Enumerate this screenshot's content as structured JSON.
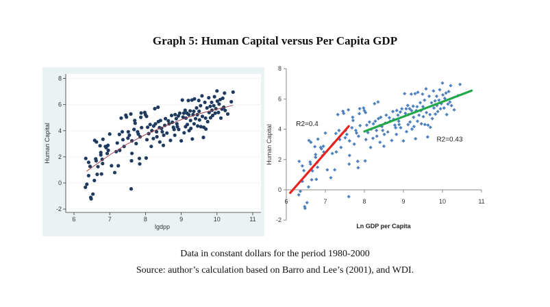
{
  "page": {
    "title": "Graph 5: Human Capital versus Per Capita GDP",
    "caption_line1": "Data in constant dollars for the period 1980-2000",
    "caption_line2": "Source: author’s calculation based on Barro and Lee’s (2001), and WDI."
  },
  "chart_data": [
    {
      "type": "scatter",
      "panel": "left",
      "title": "",
      "xlabel": "lgdpp",
      "ylabel": "Human Capital",
      "xlim": [
        6,
        11
      ],
      "ylim": [
        -2,
        8
      ],
      "xticks": [
        "6",
        "7",
        "8",
        "9",
        "10",
        "11"
      ],
      "yticks": [
        "-2",
        "0",
        "2",
        "4",
        "6",
        "8"
      ],
      "grid": true,
      "background": "#eaf2f4",
      "marker_color": "#1f3a5f",
      "fit": {
        "type": "quadratic",
        "color": "#a0404a",
        "x_range": [
          6.35,
          10.45
        ],
        "points": [
          [
            6.35,
            0.9
          ],
          [
            7.0,
            2.15
          ],
          [
            7.5,
            3.0
          ],
          [
            8.0,
            3.7
          ],
          [
            8.5,
            4.3
          ],
          [
            9.0,
            4.85
          ],
          [
            9.5,
            5.3
          ],
          [
            10.0,
            5.65
          ],
          [
            10.45,
            5.95
          ]
        ]
      },
      "series_ref": "points"
    },
    {
      "type": "scatter",
      "panel": "right",
      "title": "",
      "xlabel": "Ln GDP per Capita",
      "ylabel": "Human Capital",
      "xlim": [
        6,
        11
      ],
      "ylim": [
        -2,
        8
      ],
      "xticks": [
        "6",
        "7",
        "8",
        "9",
        "10",
        "11"
      ],
      "yticks": [
        "-2",
        "0",
        "2",
        "4",
        "6",
        "8"
      ],
      "grid": false,
      "marker_color": "#4f81bd",
      "trendlines": [
        {
          "name": "low-income fit",
          "color": "#e8231e",
          "x": [
            6.1,
            7.6
          ],
          "y": [
            -0.2,
            4.2
          ],
          "label": "R2=0.4",
          "label_at": [
            6.25,
            4.2
          ]
        },
        {
          "name": "high-income fit",
          "color": "#21a847",
          "x": [
            8.0,
            10.75
          ],
          "y": [
            3.85,
            6.55
          ],
          "label": "R2=0.43",
          "label_at": [
            9.85,
            3.2
          ]
        }
      ],
      "series_ref": "points"
    }
  ],
  "points": [
    [
      6.33,
      1.88
    ],
    [
      6.32,
      -0.33
    ],
    [
      6.36,
      -0.1
    ],
    [
      6.41,
      1.58
    ],
    [
      6.45,
      1.27
    ],
    [
      6.41,
      0.56
    ],
    [
      6.47,
      -1.11
    ],
    [
      6.48,
      -1.22
    ],
    [
      6.53,
      -0.85
    ],
    [
      6.57,
      0.19
    ],
    [
      6.58,
      3.26
    ],
    [
      6.63,
      3.14
    ],
    [
      6.61,
      1.84
    ],
    [
      6.62,
      1.7
    ],
    [
      6.65,
      0.66
    ],
    [
      6.67,
      1.25
    ],
    [
      6.73,
      2.85
    ],
    [
      6.75,
      2.33
    ],
    [
      6.75,
      2.15
    ],
    [
      6.77,
      0.69
    ],
    [
      6.8,
      1.49
    ],
    [
      6.79,
      1.81
    ],
    [
      6.81,
      3.35
    ],
    [
      6.88,
      2.8
    ],
    [
      6.9,
      2.71
    ],
    [
      6.93,
      2.26
    ],
    [
      6.95,
      2.88
    ],
    [
      6.96,
      2.5
    ],
    [
      7.0,
      3.75
    ],
    [
      7.05,
      1.32
    ],
    [
      7.14,
      0.8
    ],
    [
      7.18,
      2.4
    ],
    [
      7.21,
      3.06
    ],
    [
      7.24,
      1.32
    ],
    [
      7.27,
      3.72
    ],
    [
      7.28,
      2.5
    ],
    [
      7.32,
      4.97
    ],
    [
      7.35,
      3.92
    ],
    [
      7.37,
      3.32
    ],
    [
      7.4,
      2.8
    ],
    [
      7.45,
      5.19
    ],
    [
      7.47,
      5.05
    ],
    [
      7.51,
      3.44
    ],
    [
      7.52,
      3.92
    ],
    [
      7.55,
      3.66
    ],
    [
      7.59,
      5.28
    ],
    [
      7.6,
      -0.45
    ],
    [
      7.61,
      1.7
    ],
    [
      7.62,
      2.27
    ],
    [
      7.62,
      3.23
    ],
    [
      7.68,
      4.1
    ],
    [
      7.7,
      4.79
    ],
    [
      7.71,
      4.58
    ],
    [
      7.74,
      3.02
    ],
    [
      7.78,
      3.92
    ],
    [
      7.8,
      3.75
    ],
    [
      7.83,
      1.88
    ],
    [
      7.84,
      1.46
    ],
    [
      7.85,
      3.54
    ],
    [
      7.87,
      5.03
    ],
    [
      7.88,
      5.36
    ],
    [
      7.89,
      4.24
    ],
    [
      7.98,
      5.4
    ],
    [
      8.0,
      5.23
    ],
    [
      8.02,
      1.91
    ],
    [
      8.03,
      5.1
    ],
    [
      8.04,
      3.32
    ],
    [
      8.06,
      4.27
    ],
    [
      8.09,
      3.78
    ],
    [
      8.13,
      4.48
    ],
    [
      8.16,
      2.8
    ],
    [
      8.18,
      4.01
    ],
    [
      8.22,
      3.4
    ],
    [
      8.23,
      4.36
    ],
    [
      8.26,
      5.69
    ],
    [
      8.28,
      4.53
    ],
    [
      8.31,
      3.92
    ],
    [
      8.32,
      3.54
    ],
    [
      8.35,
      5.8
    ],
    [
      8.36,
      4.7
    ],
    [
      8.39,
      4.24
    ],
    [
      8.4,
      3.14
    ],
    [
      8.42,
      4.79
    ],
    [
      8.45,
      4.18
    ],
    [
      8.47,
      3.92
    ],
    [
      8.5,
      2.88
    ],
    [
      8.51,
      3.66
    ],
    [
      8.54,
      4.41
    ],
    [
      8.56,
      4.93
    ],
    [
      8.6,
      3.82
    ],
    [
      8.64,
      4.76
    ],
    [
      8.66,
      4.53
    ],
    [
      8.7,
      3.26
    ],
    [
      8.73,
      5.17
    ],
    [
      8.75,
      4.65
    ],
    [
      8.78,
      4.27
    ],
    [
      8.8,
      4.1
    ],
    [
      8.82,
      3.66
    ],
    [
      8.83,
      5.24
    ],
    [
      8.86,
      4.93
    ],
    [
      8.88,
      4.53
    ],
    [
      8.89,
      4.31
    ],
    [
      8.92,
      5.14
    ],
    [
      8.93,
      4.1
    ],
    [
      8.96,
      5.35
    ],
    [
      9.0,
      3.23
    ],
    [
      9.03,
      6.35
    ],
    [
      9.05,
      5.05
    ],
    [
      9.07,
      5.35
    ],
    [
      9.08,
      3.84
    ],
    [
      9.11,
      5.57
    ],
    [
      9.12,
      4.31
    ],
    [
      9.13,
      4.97
    ],
    [
      9.16,
      5.35
    ],
    [
      9.17,
      4.48
    ],
    [
      9.2,
      6.32
    ],
    [
      9.21,
      5.23
    ],
    [
      9.22,
      4.01
    ],
    [
      9.25,
      5.52
    ],
    [
      9.26,
      4.79
    ],
    [
      9.27,
      4.18
    ],
    [
      9.3,
      6.35
    ],
    [
      9.31,
      3.37
    ],
    [
      9.33,
      5.23
    ],
    [
      9.35,
      5.49
    ],
    [
      9.36,
      4.53
    ],
    [
      9.37,
      6.44
    ],
    [
      9.4,
      4.93
    ],
    [
      9.43,
      5.75
    ],
    [
      9.45,
      5.23
    ],
    [
      9.46,
      4.36
    ],
    [
      9.49,
      6.32
    ],
    [
      9.5,
      5.49
    ],
    [
      9.51,
      4.83
    ],
    [
      9.54,
      5.92
    ],
    [
      9.55,
      4.31
    ],
    [
      9.58,
      6.67
    ],
    [
      9.59,
      5.1
    ],
    [
      9.62,
      3.49
    ],
    [
      9.63,
      4.27
    ],
    [
      9.66,
      6.18
    ],
    [
      9.68,
      4.97
    ],
    [
      9.69,
      4.13
    ],
    [
      9.72,
      5.75
    ],
    [
      9.74,
      4.7
    ],
    [
      9.77,
      6.53
    ],
    [
      9.78,
      5.4
    ],
    [
      9.81,
      5.87
    ],
    [
      9.82,
      5.0
    ],
    [
      9.85,
      6.18
    ],
    [
      9.86,
      5.57
    ],
    [
      9.88,
      5.17
    ],
    [
      9.91,
      5.92
    ],
    [
      9.93,
      6.61
    ],
    [
      9.95,
      5.35
    ],
    [
      9.97,
      5.69
    ],
    [
      10.0,
      7.05
    ],
    [
      10.01,
      6.27
    ],
    [
      10.04,
      5.4
    ],
    [
      10.06,
      6.04
    ],
    [
      10.09,
      6.39
    ],
    [
      10.11,
      4.97
    ],
    [
      10.14,
      5.66
    ],
    [
      10.16,
      6.49
    ],
    [
      10.19,
      5.8
    ],
    [
      10.21,
      6.88
    ],
    [
      10.23,
      5.56
    ],
    [
      10.3,
      5.28
    ],
    [
      10.4,
      6.22
    ],
    [
      10.45,
      6.96
    ]
  ]
}
